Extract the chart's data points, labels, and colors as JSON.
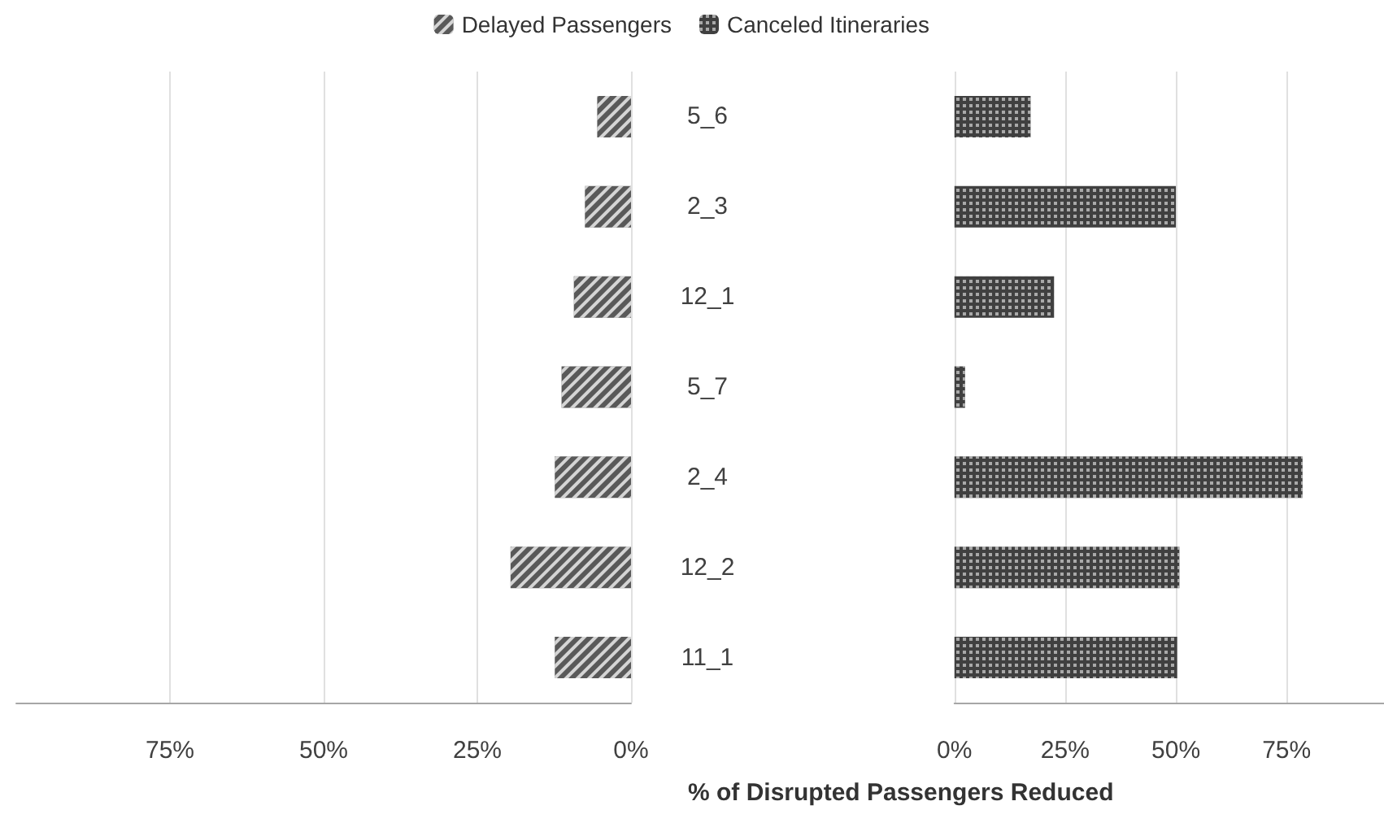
{
  "chart_data": [
    {
      "type": "bar",
      "orientation": "horizontal",
      "categories": [
        "5_6",
        "2_3",
        "12_1",
        "5_7",
        "2_4",
        "12_2",
        "11_1"
      ],
      "series": [
        {
          "name": "Delayed Passengers",
          "color": "#595959",
          "values": [
            5.5,
            7.5,
            9.3,
            11.3,
            12.4,
            19.6,
            12.4
          ]
        }
      ],
      "xlim": [
        100,
        0
      ],
      "xticks": [
        {
          "value": 75,
          "label": "75%"
        },
        {
          "value": 50,
          "label": "50%"
        },
        {
          "value": 25,
          "label": "25%"
        },
        {
          "value": 0,
          "label": "0%"
        }
      ],
      "grid": "x",
      "legend": "top"
    },
    {
      "type": "bar",
      "orientation": "horizontal",
      "categories": [
        null,
        null,
        null,
        null,
        null,
        null,
        null
      ],
      "series": [
        {
          "name": "Canceled Itineraries",
          "color": "#404040",
          "values": [
            17.2,
            50,
            22.5,
            2.4,
            78.6,
            50.8,
            50.3
          ]
        }
      ],
      "xlim": [
        0,
        97
      ],
      "xticks": [
        {
          "value": 0,
          "label": "0%"
        },
        {
          "value": 25,
          "label": "25%"
        },
        {
          "value": 50,
          "label": "50%"
        },
        {
          "value": 75,
          "label": "75%"
        }
      ],
      "xlabel": "% of Disrupted Passengers Reduced",
      "grid": "x",
      "legend": "top"
    }
  ]
}
